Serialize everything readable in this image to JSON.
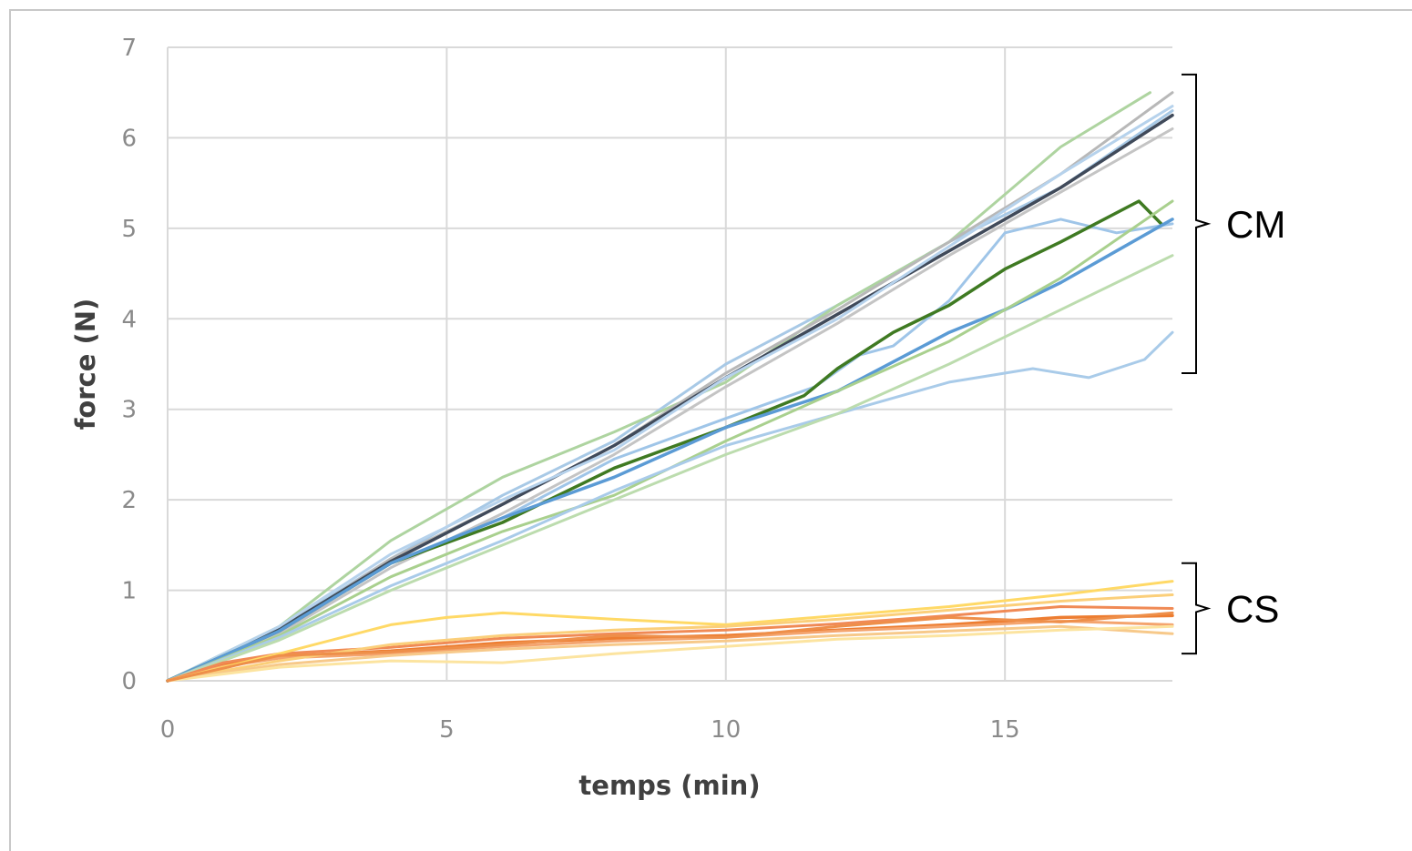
{
  "chart_data": {
    "type": "line",
    "title": "",
    "xlabel": "temps (min)",
    "ylabel": "force (N)",
    "xlim": [
      0,
      18
    ],
    "ylim": [
      0,
      7
    ],
    "xticks": [
      "0",
      "5",
      "10",
      "15"
    ],
    "yticks": [
      "0",
      "1",
      "2",
      "3",
      "4",
      "5",
      "6",
      "7"
    ],
    "grid": true,
    "legend": "none",
    "annotations": [
      {
        "label": "CM",
        "y_range": [
          3.4,
          6.7
        ]
      },
      {
        "label": "CS",
        "y_range": [
          0.3,
          1.3
        ]
      }
    ],
    "series": [
      {
        "group": "CM",
        "color": "#a8c9e6",
        "x": [
          0,
          2,
          4,
          6,
          8,
          10,
          12,
          14,
          16,
          18
        ],
        "y": [
          0,
          0.58,
          1.35,
          2.05,
          2.65,
          3.5,
          4.15,
          4.85,
          5.45,
          6.3
        ]
      },
      {
        "group": "CM",
        "color": "#aed4a0",
        "x": [
          0,
          2,
          4,
          6,
          8,
          10,
          12,
          14,
          16,
          17.6
        ],
        "y": [
          0,
          0.6,
          1.55,
          2.25,
          2.75,
          3.3,
          4.15,
          4.85,
          5.9,
          6.5
        ]
      },
      {
        "group": "CM",
        "color": "#b8b8b8",
        "x": [
          0,
          2,
          4,
          6,
          8,
          10,
          12,
          14,
          16,
          18
        ],
        "y": [
          0,
          0.55,
          1.35,
          1.95,
          2.6,
          3.4,
          4.1,
          4.85,
          5.6,
          6.5
        ]
      },
      {
        "group": "CM",
        "color": "#c4c4c4",
        "x": [
          0,
          2,
          4,
          6,
          8,
          10,
          12,
          14,
          16,
          18
        ],
        "y": [
          0,
          0.52,
          1.25,
          1.85,
          2.5,
          3.25,
          3.95,
          4.7,
          5.4,
          6.1
        ]
      },
      {
        "group": "CM",
        "color": "#404a5a",
        "x": [
          0,
          2,
          4,
          6,
          8,
          10,
          12,
          14,
          16,
          18
        ],
        "y": [
          0,
          0.57,
          1.32,
          1.95,
          2.6,
          3.35,
          4.05,
          4.75,
          5.45,
          6.25
        ]
      },
      {
        "group": "CM",
        "color": "#b6d2ec",
        "x": [
          0,
          2,
          4,
          6,
          8,
          10,
          12,
          14,
          16,
          18
        ],
        "y": [
          0,
          0.6,
          1.4,
          2.0,
          2.55,
          3.35,
          4.0,
          4.8,
          5.6,
          6.35
        ]
      },
      {
        "group": "CM",
        "color": "#9fc5e8",
        "x": [
          0,
          2,
          4,
          6,
          8,
          10,
          11.6,
          12.4,
          13,
          14,
          15,
          16,
          17,
          18
        ],
        "y": [
          0,
          0.55,
          1.3,
          1.8,
          2.45,
          2.9,
          3.25,
          3.6,
          3.7,
          4.2,
          4.95,
          5.1,
          4.95,
          5.05
        ]
      },
      {
        "group": "CM",
        "color": "#3f7a22",
        "x": [
          0,
          2,
          4,
          6,
          8,
          10,
          11.4,
          12,
          13,
          14,
          15,
          16,
          17.4,
          17.8
        ],
        "y": [
          0,
          0.55,
          1.3,
          1.75,
          2.35,
          2.8,
          3.15,
          3.45,
          3.85,
          4.15,
          4.55,
          4.85,
          5.3,
          5.05
        ]
      },
      {
        "group": "CM",
        "color": "#5b9bd5",
        "x": [
          0,
          2,
          4,
          6,
          8,
          10,
          12,
          14,
          15,
          16,
          17,
          18
        ],
        "y": [
          0,
          0.55,
          1.3,
          1.8,
          2.25,
          2.8,
          3.2,
          3.85,
          4.1,
          4.4,
          4.75,
          5.1
        ]
      },
      {
        "group": "CM",
        "color": "#a9d08e",
        "x": [
          0,
          2,
          4,
          6,
          8,
          10,
          12,
          14,
          16,
          18
        ],
        "y": [
          0,
          0.5,
          1.15,
          1.65,
          2.05,
          2.65,
          3.2,
          3.75,
          4.45,
          5.3
        ]
      },
      {
        "group": "CM",
        "color": "#a9cbe9",
        "x": [
          0,
          2,
          4,
          6,
          8,
          10,
          12,
          14,
          15.5,
          16.5,
          17.5,
          18
        ],
        "y": [
          0,
          0.48,
          1.05,
          1.55,
          2.1,
          2.6,
          2.95,
          3.3,
          3.45,
          3.35,
          3.55,
          3.85
        ]
      },
      {
        "group": "CM",
        "color": "#bcdcae",
        "x": [
          0,
          2,
          4,
          6,
          8,
          10,
          12,
          14,
          16,
          18
        ],
        "y": [
          0,
          0.45,
          1.0,
          1.5,
          2.0,
          2.5,
          2.95,
          3.5,
          4.1,
          4.7
        ]
      },
      {
        "group": "CS",
        "color": "#ed7d31",
        "x": [
          0,
          1,
          2,
          4,
          6,
          8,
          10,
          12,
          14,
          16,
          18
        ],
        "y": [
          0,
          0.18,
          0.27,
          0.33,
          0.42,
          0.47,
          0.5,
          0.56,
          0.62,
          0.7,
          0.72
        ]
      },
      {
        "group": "CS",
        "color": "#f4a46e",
        "x": [
          0,
          1,
          2,
          4,
          6,
          8,
          10,
          12,
          14,
          16,
          18
        ],
        "y": [
          0,
          0.16,
          0.25,
          0.3,
          0.38,
          0.44,
          0.48,
          0.55,
          0.6,
          0.66,
          0.62
        ]
      },
      {
        "group": "CS",
        "color": "#f08a55",
        "x": [
          0,
          1,
          2,
          4,
          6,
          8,
          10,
          12,
          14,
          16,
          18
        ],
        "y": [
          0,
          0.2,
          0.3,
          0.37,
          0.47,
          0.52,
          0.56,
          0.63,
          0.72,
          0.82,
          0.8
        ]
      },
      {
        "group": "CS",
        "color": "#ffd966",
        "x": [
          0,
          2,
          4,
          5,
          6,
          8,
          10,
          12,
          14,
          16,
          18
        ],
        "y": [
          0,
          0.3,
          0.62,
          0.7,
          0.75,
          0.68,
          0.62,
          0.72,
          0.82,
          0.95,
          1.1
        ]
      },
      {
        "group": "CS",
        "color": "#fbcf7a",
        "x": [
          0,
          2,
          4,
          6,
          8,
          10,
          12,
          14,
          16,
          18
        ],
        "y": [
          0,
          0.22,
          0.4,
          0.5,
          0.56,
          0.6,
          0.68,
          0.78,
          0.88,
          0.95
        ]
      },
      {
        "group": "CS",
        "color": "#f7c98a",
        "x": [
          0,
          2,
          4,
          6,
          8,
          10,
          12,
          14,
          16,
          18
        ],
        "y": [
          0,
          0.18,
          0.28,
          0.35,
          0.4,
          0.44,
          0.5,
          0.55,
          0.6,
          0.52
        ]
      },
      {
        "group": "CS",
        "color": "#fce4a0",
        "x": [
          0,
          2,
          4,
          6,
          8,
          10,
          12,
          14,
          16,
          18
        ],
        "y": [
          0,
          0.15,
          0.22,
          0.2,
          0.3,
          0.38,
          0.46,
          0.5,
          0.56,
          0.6
        ]
      },
      {
        "group": "CS",
        "color": "#ee8f4a",
        "x": [
          0,
          2,
          4,
          6,
          8,
          10,
          12,
          14,
          16,
          18
        ],
        "y": [
          0,
          0.28,
          0.32,
          0.4,
          0.5,
          0.48,
          0.6,
          0.7,
          0.65,
          0.75
        ]
      }
    ]
  }
}
